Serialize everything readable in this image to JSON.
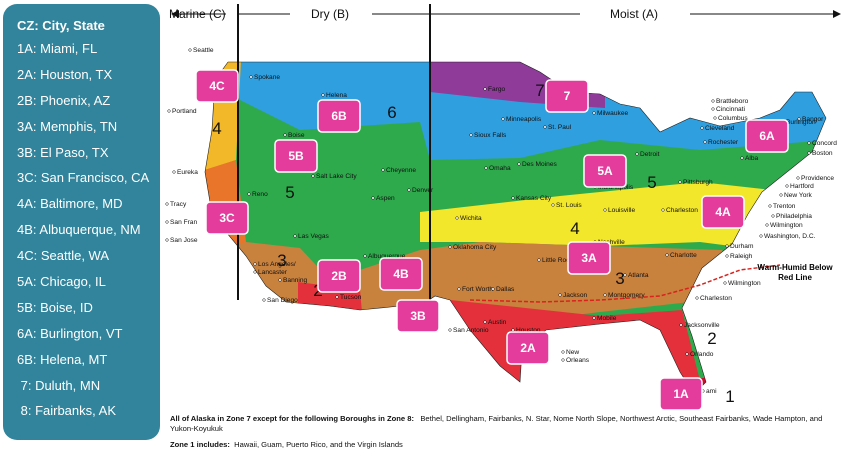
{
  "legend": {
    "title": "CZ: City, State",
    "items": [
      "1A: Miami, FL",
      "2A: Houston, TX",
      "2B: Phoenix, AZ",
      "3A: Memphis, TN",
      "3B: El Paso, TX",
      "3C: San Francisco, CA",
      "4A: Baltimore, MD",
      "4B: Albuquerque, NM",
      "4C: Seattle, WA",
      "5A: Chicago, IL",
      "5B: Boise, ID",
      "6A: Burlington, VT",
      "6B: Helena, MT",
      " 7: Duluth, MN",
      " 8: Fairbanks, AK"
    ]
  },
  "header": {
    "marine": "Marine (C)",
    "dry": "Dry (B)",
    "moist": "Moist (A)"
  },
  "zone_labels": [
    "4C",
    "6B",
    "5B",
    "3C",
    "2B",
    "4B",
    "3B",
    "2A",
    "7",
    "5A",
    "6A",
    "4A",
    "3A",
    "1A"
  ],
  "zone_numbers": [
    "4",
    "6",
    "5",
    "3",
    "2",
    "7",
    "5",
    "4",
    "3",
    "2",
    "1"
  ],
  "cities": [
    "Seattle",
    "Spokane",
    "Helena",
    "Portland",
    "Boise",
    "Eureka",
    "Reno",
    "Salt Lake City",
    "Cheyenne",
    "Denver",
    "Aspen",
    "Tracy",
    "San Fran",
    "San Jose",
    "Las Vegas",
    "Los Angeles/",
    "Lancaster",
    "Banning",
    "San Diego",
    "Tucson",
    "Albuquerque",
    "Fargo",
    "Minneapolis",
    "St. Paul",
    "Sioux Falls",
    "Milwaukee",
    "Omaha",
    "Des Moines",
    "Detroit",
    "Indianapolis",
    "Kansas City",
    "St. Louis",
    "Louisville",
    "Wichita",
    "Oklahoma City",
    "Little Rock",
    "Nashville",
    "Charleston",
    "Pittsburgh",
    "Charlotte",
    "Atlanta",
    "Fort Worth",
    "Dallas",
    "Jackson",
    "Montgomery",
    "Charleston",
    "Austin",
    "San Antonio",
    "Houston",
    "Mobile",
    "New",
    "Orleans",
    "Jacksonville",
    "Orlando",
    "ami",
    "Brattleboro",
    "Cincinnati",
    "Columbus",
    "Cleveland",
    "Rochester",
    "Alba",
    "Bangor",
    "Burlington",
    "Concord",
    "Boston",
    "Providence",
    "Hartford",
    "New York",
    "Trenton",
    "Philadelphia",
    "Wilmington",
    "Washington, D.C.",
    "Durham",
    "Raleigh",
    "Wilmington",
    "Reno",
    "Las",
    "Vegas"
  ],
  "note": {
    "warm_humid_1": "Warm-Humid Below",
    "warm_humid_2": "Red Line"
  },
  "footer": {
    "alaska_label": "All of Alaska in Zone 7 except for the following Boroughs in Zone 8:",
    "alaska_text": "Bethel, Dellingham, Fairbanks, N. Star, Nome North Slope, Northwest Arctic, Southeast Fairbanks, Wade Hampton, and Yukon-Koyukuk",
    "zone1_label": "Zone 1 includes:",
    "zone1_text": "Hawaii, Guam, Puerto Rico, and the Virgin Islands"
  }
}
